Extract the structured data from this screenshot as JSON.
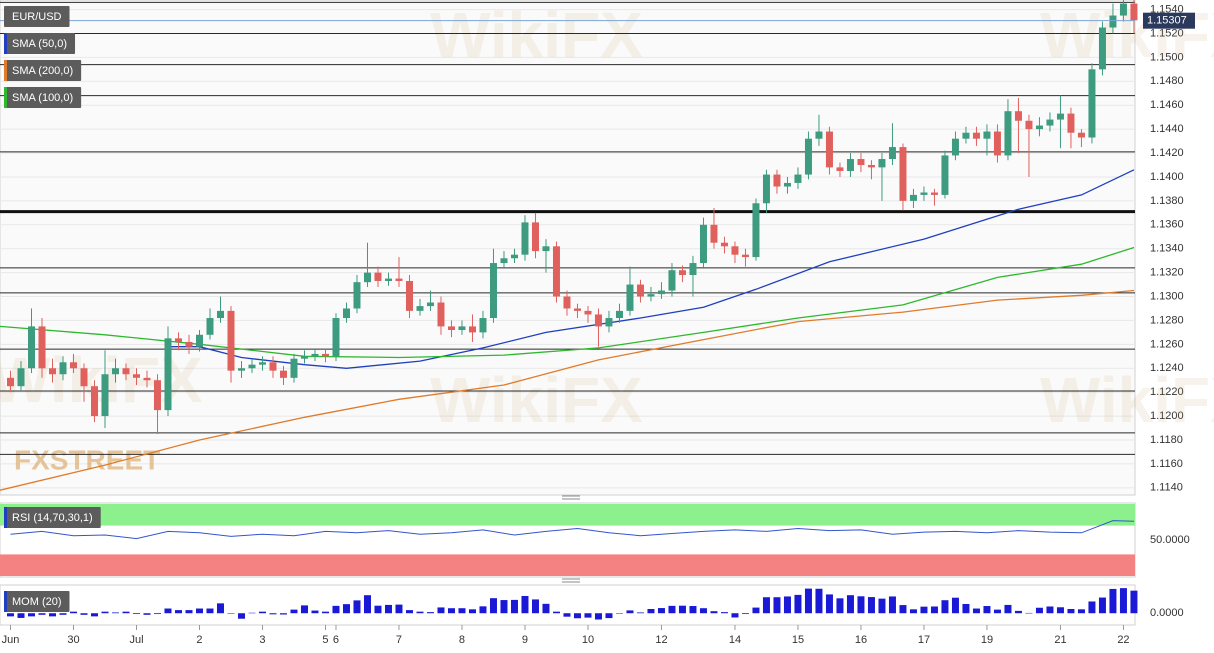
{
  "chart_data": [
    {
      "type": "candlestick",
      "title": "EUR/USD",
      "xlim": [
        -1,
        107.1
      ],
      "ylim": [
        1.1134,
        1.1548
      ],
      "yticks": [
        {
          "value": 1.114,
          "label": "1.1140"
        },
        {
          "value": 1.116,
          "label": "1.1160"
        },
        {
          "value": 1.118,
          "label": "1.1180"
        },
        {
          "value": 1.12,
          "label": "1.1200"
        },
        {
          "value": 1.122,
          "label": "1.1220"
        },
        {
          "value": 1.124,
          "label": "1.1240"
        },
        {
          "value": 1.126,
          "label": "1.1260"
        },
        {
          "value": 1.128,
          "label": "1.1280"
        },
        {
          "value": 1.13,
          "label": "1.1300"
        },
        {
          "value": 1.132,
          "label": "1.1320"
        },
        {
          "value": 1.134,
          "label": "1.1340"
        },
        {
          "value": 1.136,
          "label": "1.1360"
        },
        {
          "value": 1.138,
          "label": "1.1380"
        },
        {
          "value": 1.14,
          "label": "1.1400"
        },
        {
          "value": 1.142,
          "label": "1.1420"
        },
        {
          "value": 1.144,
          "label": "1.1440"
        },
        {
          "value": 1.146,
          "label": "1.1460"
        },
        {
          "value": 1.148,
          "label": "1.1480"
        },
        {
          "value": 1.15,
          "label": "1.1500"
        },
        {
          "value": 1.152,
          "label": "1.1520"
        },
        {
          "value": 1.154,
          "label": "1.1540"
        }
      ],
      "grid": true,
      "up_color": "#3d9b7f",
      "down_color": "#e0605d",
      "open": [
        1.1232,
        1.1225,
        1.124,
        1.1275,
        1.124,
        1.1235,
        1.1245,
        1.124,
        1.1225,
        1.12,
        1.1235,
        1.124,
        1.1235,
        1.1232,
        1.123,
        1.1205,
        1.1265,
        1.1262,
        1.1258,
        1.1268,
        1.1282,
        1.1288,
        1.1238,
        1.124,
        1.1243,
        1.1245,
        1.1238,
        1.1232,
        1.1248,
        1.125,
        1.1252,
        1.125,
        1.1282,
        1.129,
        1.1312,
        1.132,
        1.1313,
        1.1315,
        1.1313,
        1.1288,
        1.1292,
        1.1295,
        1.1275,
        1.1272,
        1.1275,
        1.127,
        1.1282,
        1.1328,
        1.1332,
        1.1335,
        1.1362,
        1.1338,
        1.1342,
        1.13,
        1.129,
        1.1288,
        1.1285,
        1.1275,
        1.1282,
        1.1288,
        1.131,
        1.13,
        1.1302,
        1.1305,
        1.1322,
        1.1318,
        1.1328,
        1.136,
        1.1345,
        1.1342,
        1.1335,
        1.1333,
        1.1378,
        1.1402,
        1.1392,
        1.1395,
        1.1402,
        1.1432,
        1.1438,
        1.1408,
        1.1405,
        1.1415,
        1.141,
        1.1408,
        1.1415,
        1.1425,
        1.138,
        1.1385,
        1.1387,
        1.1385,
        1.1418,
        1.1432,
        1.1437,
        1.1432,
        1.1438,
        1.1418,
        1.1455,
        1.1447,
        1.144,
        1.1443,
        1.1448,
        1.1453,
        1.1437,
        1.1433,
        1.149,
        1.1525,
        1.1535,
        1.1545
      ],
      "high": [
        1.1238,
        1.1246,
        1.129,
        1.1282,
        1.1248,
        1.125,
        1.1252,
        1.1244,
        1.123,
        1.1255,
        1.1248,
        1.1244,
        1.124,
        1.1238,
        1.1235,
        1.1275,
        1.127,
        1.1268,
        1.1272,
        1.129,
        1.13,
        1.1292,
        1.1246,
        1.1248,
        1.125,
        1.125,
        1.1242,
        1.1252,
        1.1255,
        1.1256,
        1.1256,
        1.1286,
        1.1295,
        1.1318,
        1.1345,
        1.1325,
        1.132,
        1.1333,
        1.1318,
        1.1298,
        1.1305,
        1.13,
        1.128,
        1.128,
        1.1285,
        1.1288,
        1.134,
        1.1338,
        1.134,
        1.1368,
        1.137,
        1.1348,
        1.1346,
        1.1305,
        1.1294,
        1.1292,
        1.129,
        1.1288,
        1.1294,
        1.1325,
        1.1314,
        1.1308,
        1.1312,
        1.1328,
        1.1326,
        1.1334,
        1.1366,
        1.1374,
        1.135,
        1.1346,
        1.134,
        1.1382,
        1.1406,
        1.1406,
        1.14,
        1.1408,
        1.1438,
        1.1452,
        1.1442,
        1.1412,
        1.142,
        1.142,
        1.1414,
        1.142,
        1.1445,
        1.1428,
        1.139,
        1.1392,
        1.139,
        1.1422,
        1.1438,
        1.1442,
        1.1442,
        1.1444,
        1.1444,
        1.1465,
        1.1466,
        1.1452,
        1.145,
        1.1454,
        1.1468,
        1.1458,
        1.144,
        1.1495,
        1.153,
        1.1545,
        1.155,
        1.1548
      ],
      "low": [
        1.122,
        1.1221,
        1.1236,
        1.1232,
        1.1228,
        1.123,
        1.1236,
        1.1212,
        1.1195,
        1.119,
        1.1228,
        1.123,
        1.1226,
        1.1224,
        1.1185,
        1.12,
        1.1255,
        1.1252,
        1.1254,
        1.1264,
        1.1278,
        1.1228,
        1.1232,
        1.1236,
        1.1238,
        1.1232,
        1.1226,
        1.1228,
        1.1244,
        1.1246,
        1.1245,
        1.1246,
        1.1278,
        1.1286,
        1.1308,
        1.1308,
        1.1309,
        1.1308,
        1.1282,
        1.1284,
        1.1288,
        1.1268,
        1.1266,
        1.1268,
        1.1262,
        1.1265,
        1.1278,
        1.1324,
        1.1328,
        1.133,
        1.1332,
        1.132,
        1.1295,
        1.1284,
        1.1282,
        1.1278,
        1.1258,
        1.127,
        1.1278,
        1.1284,
        1.1295,
        1.1296,
        1.1298,
        1.13,
        1.1312,
        1.13,
        1.1324,
        1.134,
        1.1336,
        1.1328,
        1.1325,
        1.133,
        1.137,
        1.1386,
        1.1386,
        1.139,
        1.1398,
        1.1426,
        1.1402,
        1.14,
        1.14,
        1.1404,
        1.1398,
        1.138,
        1.141,
        1.1372,
        1.1374,
        1.138,
        1.1376,
        1.1382,
        1.1414,
        1.1428,
        1.1426,
        1.1418,
        1.1412,
        1.1414,
        1.142,
        1.14,
        1.1434,
        1.1438,
        1.1424,
        1.1424,
        1.1425,
        1.1428,
        1.1485,
        1.152,
        1.153,
        1.152
      ],
      "close": [
        1.1225,
        1.124,
        1.1275,
        1.124,
        1.1235,
        1.1245,
        1.124,
        1.1225,
        1.12,
        1.1235,
        1.124,
        1.1235,
        1.1232,
        1.123,
        1.1205,
        1.1265,
        1.1262,
        1.1258,
        1.1268,
        1.1282,
        1.1288,
        1.1238,
        1.124,
        1.1243,
        1.1245,
        1.1238,
        1.1232,
        1.1248,
        1.125,
        1.1252,
        1.125,
        1.1282,
        1.129,
        1.1312,
        1.132,
        1.1313,
        1.1315,
        1.1313,
        1.1288,
        1.1292,
        1.1295,
        1.1275,
        1.1272,
        1.1275,
        1.127,
        1.1282,
        1.1328,
        1.1332,
        1.1335,
        1.1362,
        1.1338,
        1.1342,
        1.13,
        1.129,
        1.1288,
        1.1285,
        1.1275,
        1.1282,
        1.1288,
        1.131,
        1.13,
        1.1302,
        1.1305,
        1.1322,
        1.1318,
        1.1328,
        1.136,
        1.1345,
        1.1342,
        1.1335,
        1.1333,
        1.1378,
        1.1402,
        1.1392,
        1.1395,
        1.1402,
        1.1432,
        1.1438,
        1.1408,
        1.1405,
        1.1415,
        1.141,
        1.1408,
        1.1415,
        1.1425,
        1.138,
        1.1385,
        1.1387,
        1.1385,
        1.1418,
        1.1432,
        1.1437,
        1.1432,
        1.1438,
        1.1418,
        1.1455,
        1.1447,
        1.144,
        1.1443,
        1.1448,
        1.1453,
        1.1437,
        1.1433,
        1.149,
        1.1525,
        1.1535,
        1.1545,
        1.1531
      ],
      "last_price": 1.15307,
      "last_price_color": "#2b3a5c",
      "levels": [
        1.1546,
        1.152,
        1.1494,
        1.1468,
        1.1421,
        1.1324,
        1.1303,
        1.1256,
        1.1221,
        1.1186,
        1.1168
      ],
      "key_level": 1.1371,
      "overlays": [
        {
          "name": "SMA (50,0)",
          "color": "#1f3fbf",
          "x": [
            15,
            18,
            22,
            28,
            32,
            39,
            45,
            51,
            60,
            66,
            71,
            78,
            87,
            96,
            102,
            107
          ],
          "values": [
            1.1258,
            1.1258,
            1.1249,
            1.1243,
            1.124,
            1.1246,
            1.1257,
            1.127,
            1.1282,
            1.1291,
            1.1306,
            1.1329,
            1.1348,
            1.1373,
            1.1385,
            1.1406
          ]
        },
        {
          "name": "SMA (200,0)",
          "color": "#e07b2a",
          "x": [
            -1,
            9,
            18,
            28,
            37,
            47,
            56,
            66,
            75,
            85,
            94,
            102,
            107
          ],
          "values": [
            1.1138,
            1.1159,
            1.118,
            1.1199,
            1.1214,
            1.1226,
            1.1247,
            1.1264,
            1.1279,
            1.1287,
            1.1297,
            1.1301,
            1.1305
          ]
        },
        {
          "name": "SMA (100,0)",
          "color": "#2db82d",
          "x": [
            -1,
            9,
            18,
            28,
            37,
            47,
            56,
            66,
            75,
            85,
            94,
            102,
            107
          ],
          "values": [
            1.1275,
            1.1268,
            1.126,
            1.125,
            1.1249,
            1.1251,
            1.1257,
            1.127,
            1.1282,
            1.1293,
            1.1316,
            1.1327,
            1.1341
          ]
        }
      ],
      "watermark": "WikiFX",
      "logo": "FXSTREET"
    },
    {
      "type": "line",
      "title": "RSI (14,70,30,1)",
      "color": "#3355cc",
      "ylim": [
        0,
        100
      ],
      "yticks": [
        {
          "value": 50,
          "label": "50.0000"
        }
      ],
      "overbought": 70,
      "oversold": 30,
      "overbought_color": "#8cf08c",
      "oversold_color": "#f58282",
      "x": [
        0,
        3,
        6,
        9,
        12,
        15,
        18,
        21,
        24,
        27,
        30,
        33,
        36,
        39,
        42,
        45,
        48,
        51,
        54,
        57,
        60,
        63,
        66,
        69,
        72,
        75,
        78,
        81,
        84,
        87,
        90,
        93,
        96,
        99,
        102,
        105,
        107
      ],
      "values": [
        58,
        62,
        56,
        57,
        52,
        62,
        60,
        55,
        58,
        56,
        62,
        60,
        63,
        58,
        60,
        64,
        57,
        62,
        66,
        60,
        56,
        59,
        62,
        64,
        62,
        66,
        63,
        64,
        58,
        61,
        62,
        60,
        63,
        61,
        60,
        77,
        76
      ]
    },
    {
      "type": "bar",
      "title": "MOM (20)",
      "color": "#1a1ad6",
      "ylim": [
        -0.0075,
        0.018
      ],
      "yticks": [
        {
          "value": 0,
          "label": "0.0000"
        }
      ],
      "values": [
        -0.002,
        -0.003,
        -0.002,
        -0.001,
        -0.002,
        -0.001,
        0.001,
        -0.001,
        -0.002,
        0.001,
        0.0005,
        0.001,
        -0.0005,
        -0.001,
        -0.0005,
        0.003,
        0.002,
        0.002,
        0.003,
        0.003,
        0.0063,
        -0.0002,
        -0.0035,
        0.0003,
        0.001,
        -0.0007,
        -0.0008,
        0.0023,
        0.005,
        0.0017,
        0.001,
        0.0047,
        0.0058,
        0.0082,
        0.0115,
        0.0048,
        0.0053,
        0.0055,
        0.002,
        0.001,
        0.0007,
        0.0037,
        0.0032,
        0.0032,
        0.0025,
        0.0044,
        0.0096,
        0.0084,
        0.0085,
        0.011,
        0.0088,
        0.006,
        0.001,
        -0.0022,
        -0.0032,
        -0.0028,
        -0.004,
        -0.0031,
        0,
        0.0018,
        0.0005,
        0.0027,
        0.0033,
        0.0047,
        0.0048,
        0.0046,
        0.0032,
        0.0013,
        0.0007,
        -0.0027,
        -0.0005,
        0.0036,
        0.0102,
        0.0102,
        0.0107,
        0.0117,
        0.0157,
        0.0156,
        0.012,
        0.0095,
        0.0115,
        0.0108,
        0.0103,
        0.0093,
        0.0107,
        0.0052,
        0.0025,
        0.0042,
        0.0043,
        0.0083,
        0.0099,
        0.0059,
        0.003,
        0.0046,
        0.0023,
        0.0053,
        0.0015,
        0.0002,
        0.0035,
        0.0043,
        0.0038,
        0.0027,
        0.0025,
        0.0075,
        0.01,
        0.0155,
        0.016,
        0.0144
      ],
      "xticks": [
        {
          "value": 0,
          "label": "Jun"
        },
        {
          "value": 6,
          "label": "30"
        },
        {
          "value": 12,
          "label": "Jul"
        },
        {
          "value": 18,
          "label": "2"
        },
        {
          "value": 24,
          "label": "3"
        },
        {
          "value": 30,
          "label": "5"
        },
        {
          "value": 31,
          "label": "6"
        },
        {
          "value": 37,
          "label": "7"
        },
        {
          "value": 43,
          "label": "8"
        },
        {
          "value": 49,
          "label": "9"
        },
        {
          "value": 55,
          "label": "10"
        },
        {
          "value": 62,
          "label": "12"
        },
        {
          "value": 69,
          "label": "14"
        },
        {
          "value": 75,
          "label": "15"
        },
        {
          "value": 81,
          "label": "16"
        },
        {
          "value": 87,
          "label": "17"
        },
        {
          "value": 93,
          "label": "19"
        },
        {
          "value": 100,
          "label": "21"
        },
        {
          "value": 106,
          "label": "22"
        }
      ]
    }
  ]
}
